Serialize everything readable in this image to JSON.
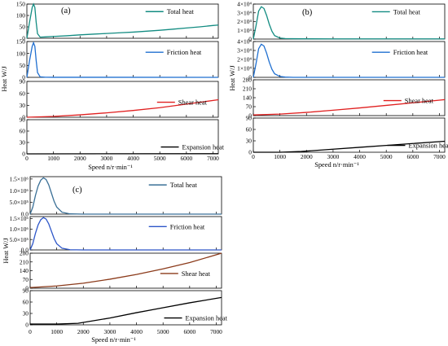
{
  "chart_data": [
    {
      "type": "line",
      "panel_label": "(a)",
      "xlabel": "Speed n/r·min⁻¹",
      "ylabel": "Heat W/J",
      "xlim": [
        0,
        7200
      ],
      "x_ticks": [
        {
          "v": 0,
          "label": "0"
        },
        {
          "v": 1000,
          "label": "1000"
        },
        {
          "v": 2000,
          "label": "2000"
        },
        {
          "v": 3000,
          "label": "3000"
        },
        {
          "v": 4000,
          "label": "4000"
        },
        {
          "v": 5000,
          "label": "5000"
        },
        {
          "v": 6000,
          "label": "6000"
        },
        {
          "v": 7000,
          "label": "7000"
        }
      ],
      "subplots": [
        {
          "series": {
            "name": "Total heat",
            "color": "#138c82",
            "x": [
              0,
              100,
              200,
              250,
              300,
              350,
              400,
              500,
              700,
              1000,
              1500,
              2000,
              2500,
              3000,
              3500,
              4000,
              4500,
              5000,
              5500,
              6000,
              6500,
              7000,
              7200
            ],
            "y": [
              0,
              70,
              135,
              150,
              135,
              70,
              20,
              5,
              6,
              8,
              11,
              15,
              18,
              21,
              24,
              27,
              31,
              35,
              40,
              45,
              50,
              56,
              58
            ]
          },
          "ylim": [
            0,
            150
          ],
          "y_ticks": [
            {
              "v": 0,
              "label": "0"
            },
            {
              "v": 50,
              "label": "50"
            },
            {
              "v": 100,
              "label": "100"
            },
            {
              "v": 150,
              "label": "150"
            }
          ]
        },
        {
          "series": {
            "name": "Friction heat",
            "color": "#1f6fd0",
            "x": [
              0,
              100,
              200,
              250,
              300,
              350,
              400,
              500,
              700,
              1000,
              7200
            ],
            "y": [
              0,
              70,
              130,
              145,
              130,
              70,
              20,
              2,
              0.5,
              0.2,
              0
            ]
          },
          "ylim": [
            0,
            150
          ],
          "y_ticks": [
            {
              "v": 0,
              "label": "0"
            },
            {
              "v": 50,
              "label": "50"
            },
            {
              "v": 100,
              "label": "100"
            },
            {
              "v": 150,
              "label": "150"
            }
          ]
        },
        {
          "series": {
            "name": "Shear heat",
            "color": "#e02020",
            "x": [
              0,
              1000,
              2000,
              3000,
              4000,
              5000,
              6000,
              7200
            ],
            "y": [
              0,
              2,
              6,
              11,
              17,
              24,
              33,
              44
            ]
          },
          "ylim": [
            0,
            90
          ],
          "y_ticks": [
            {
              "v": 0,
              "label": "0"
            },
            {
              "v": 30,
              "label": "30"
            },
            {
              "v": 60,
              "label": "60"
            },
            {
              "v": 90,
              "label": "90"
            }
          ]
        },
        {
          "series": {
            "name": "Expansion heat",
            "color": "#000000",
            "x": [
              0,
              7200
            ],
            "y": [
              0,
              0.5
            ]
          },
          "ylim": [
            0,
            90
          ],
          "y_ticks": [
            {
              "v": 0,
              "label": "0"
            },
            {
              "v": 30,
              "label": "30"
            },
            {
              "v": 60,
              "label": "60"
            },
            {
              "v": 90,
              "label": "90"
            }
          ]
        }
      ]
    },
    {
      "type": "line",
      "panel_label": "(b)",
      "xlabel": "Speed n/r·min⁻¹",
      "ylabel": "Heat W/J",
      "xlim": [
        0,
        7200
      ],
      "x_ticks": [
        {
          "v": 0,
          "label": "0"
        },
        {
          "v": 1000,
          "label": "1000"
        },
        {
          "v": 2000,
          "label": "2000"
        },
        {
          "v": 3000,
          "label": "3000"
        },
        {
          "v": 4000,
          "label": "4000"
        },
        {
          "v": 5000,
          "label": "5000"
        },
        {
          "v": 6000,
          "label": "6000"
        },
        {
          "v": 7000,
          "label": "7000"
        }
      ],
      "subplots": [
        {
          "series": {
            "name": "Total heat",
            "color": "#138c82",
            "x": [
              0,
              100,
              200,
              300,
              400,
              500,
              600,
              700,
              800,
              1000,
              1200,
              1500,
              2000,
              3000,
              7200
            ],
            "y": [
              0,
              15000,
              32000,
              37000,
              35000,
              27000,
              17000,
              9000,
              4000,
              1200,
              600,
              400,
              300,
              250,
              200
            ]
          },
          "ylim": [
            0,
            40000
          ],
          "y_ticks": [
            {
              "v": 0,
              "label": "0"
            },
            {
              "v": 10000,
              "label": "1×10⁴"
            },
            {
              "v": 20000,
              "label": "2×10⁴"
            },
            {
              "v": 30000,
              "label": "3×10⁴"
            },
            {
              "v": 40000,
              "label": "4×10⁴"
            }
          ]
        },
        {
          "series": {
            "name": "Friction heat",
            "color": "#1f6fd0",
            "x": [
              0,
              100,
              200,
              300,
              400,
              500,
              600,
              700,
              800,
              1000,
              1200,
              1500,
              7200
            ],
            "y": [
              0,
              15000,
              32000,
              37000,
              35000,
              27000,
              17000,
              9000,
              4000,
              1000,
              300,
              0,
              0
            ]
          },
          "ylim": [
            0,
            40000
          ],
          "y_ticks": [
            {
              "v": 0,
              "label": "0"
            },
            {
              "v": 10000,
              "label": "1×10⁴"
            },
            {
              "v": 20000,
              "label": "2×10⁴"
            },
            {
              "v": 30000,
              "label": "3×10⁴"
            },
            {
              "v": 40000,
              "label": "4×10⁴"
            }
          ]
        },
        {
          "series": {
            "name": "Shear heat",
            "color": "#e02020",
            "x": [
              0,
              1000,
              2000,
              3000,
              4000,
              5000,
              6000,
              7200
            ],
            "y": [
              5,
              12,
              25,
              42,
              60,
              80,
              100,
              125
            ]
          },
          "ylim": [
            0,
            280
          ],
          "y_ticks": [
            {
              "v": 0,
              "label": "0"
            },
            {
              "v": 70,
              "label": "70"
            },
            {
              "v": 140,
              "label": "140"
            },
            {
              "v": 210,
              "label": "210"
            },
            {
              "v": 280,
              "label": "280"
            }
          ]
        },
        {
          "series": {
            "name": "Expansion heat",
            "color": "#000000",
            "x": [
              0,
              1000,
              1800,
              3000,
              4000,
              5000,
              6000,
              7200
            ],
            "y": [
              0,
              0,
              2,
              8,
              13,
              18,
              23,
              29
            ]
          },
          "ylim": [
            0,
            90
          ],
          "y_ticks": [
            {
              "v": 0,
              "label": "0"
            },
            {
              "v": 30,
              "label": "30"
            },
            {
              "v": 60,
              "label": "60"
            },
            {
              "v": 90,
              "label": "90"
            }
          ]
        }
      ]
    },
    {
      "type": "line",
      "panel_label": "(c)",
      "xlabel": "Speed n/r·min⁻¹",
      "ylabel": "Heat W/J",
      "xlim": [
        0,
        7200
      ],
      "x_ticks": [
        {
          "v": 0,
          "label": "0"
        },
        {
          "v": 1000,
          "label": "1000"
        },
        {
          "v": 2000,
          "label": "2000"
        },
        {
          "v": 3000,
          "label": "3000"
        },
        {
          "v": 4000,
          "label": "4000"
        },
        {
          "v": 5000,
          "label": "5000"
        },
        {
          "v": 6000,
          "label": "6000"
        },
        {
          "v": 7000,
          "label": "7000"
        }
      ],
      "subplots": [
        {
          "series": {
            "name": "Total heat",
            "color": "#3a6f96",
            "x": [
              0,
              100,
              200,
              300,
              400,
              500,
              600,
              700,
              800,
              900,
              1000,
              1200,
              1500,
              2000,
              7200
            ],
            "y": [
              0,
              300000,
              800000,
              1200000,
              1450000,
              1550000,
              1480000,
              1250000,
              900000,
              550000,
              300000,
              80000,
              10000,
              0,
              0
            ]
          },
          "ylim": [
            0,
            1600000
          ],
          "y_ticks": [
            {
              "v": 0,
              "label": "0.0"
            },
            {
              "v": 500000,
              "label": "5.0×10⁵"
            },
            {
              "v": 1000000,
              "label": "1.0×10⁶"
            },
            {
              "v": 1500000,
              "label": "1.5×10⁶"
            }
          ]
        },
        {
          "series": {
            "name": "Friction heat",
            "color": "#2c55c8",
            "x": [
              0,
              100,
              200,
              300,
              400,
              500,
              600,
              700,
              800,
              900,
              1000,
              1200,
              1500,
              2000,
              7200
            ],
            "y": [
              0,
              300000,
              800000,
              1200000,
              1450000,
              1550000,
              1480000,
              1250000,
              900000,
              550000,
              300000,
              80000,
              10000,
              0,
              0
            ]
          },
          "ylim": [
            0,
            1600000
          ],
          "y_ticks": [
            {
              "v": 0,
              "label": "0.0"
            },
            {
              "v": 500000,
              "label": "5.0×10⁵"
            },
            {
              "v": 1000000,
              "label": "1.0×10⁶"
            },
            {
              "v": 1500000,
              "label": "1.5×10⁶"
            }
          ]
        },
        {
          "series": {
            "name": "Shear heat",
            "color": "#8b3a1a",
            "x": [
              0,
              1000,
              2000,
              3000,
              4000,
              5000,
              6000,
              7200
            ],
            "y": [
              5,
              18,
              40,
              72,
              110,
              155,
              205,
              280
            ]
          },
          "ylim": [
            0,
            280
          ],
          "y_ticks": [
            {
              "v": 0,
              "label": "0"
            },
            {
              "v": 70,
              "label": "70"
            },
            {
              "v": 140,
              "label": "140"
            },
            {
              "v": 210,
              "label": "210"
            },
            {
              "v": 280,
              "label": "280"
            }
          ]
        },
        {
          "series": {
            "name": "Expansion heat",
            "color": "#000000",
            "x": [
              0,
              1000,
              1800,
              3000,
              4000,
              5000,
              6000,
              7200
            ],
            "y": [
              2,
              2,
              4,
              18,
              32,
              45,
              58,
              72
            ]
          },
          "ylim": [
            0,
            90
          ],
          "y_ticks": [
            {
              "v": 0,
              "label": "0"
            },
            {
              "v": 30,
              "label": "30"
            },
            {
              "v": 60,
              "label": "60"
            },
            {
              "v": 90,
              "label": "90"
            }
          ]
        }
      ]
    }
  ]
}
